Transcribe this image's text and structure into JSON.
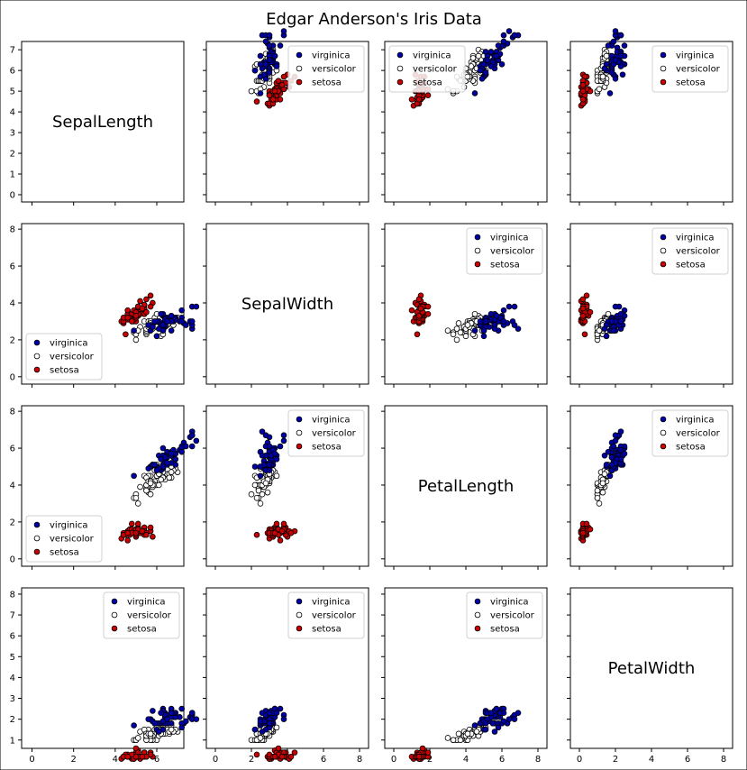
{
  "figure": {
    "title": "Edgar Anderson's Iris Data"
  },
  "chart_data": {
    "type": "scatter",
    "title": "Edgar Anderson's Iris Data",
    "variables": [
      "SepalLength",
      "SepalWidth",
      "PetalLength",
      "PetalWidth"
    ],
    "legend_order": [
      "virginica",
      "versicolor",
      "setosa"
    ],
    "colors": {
      "virginica": "#0000aa",
      "versicolor": "#ffffff",
      "setosa": "#cc0000",
      "edge": "#000000"
    },
    "x_ticks": [
      0,
      2,
      4,
      6,
      8
    ],
    "x_ticks_col0": [
      0,
      2,
      4,
      6
    ],
    "row_y_ticks": [
      [
        0,
        1,
        2,
        3,
        4,
        5,
        6,
        7
      ],
      [
        0,
        2,
        4,
        6,
        8
      ],
      [
        0,
        2,
        4,
        6,
        8
      ],
      [
        1,
        2,
        3,
        4,
        5,
        6,
        7,
        8
      ]
    ],
    "x_limits": [
      [
        -0.5,
        7.3
      ],
      [
        -0.5,
        8.5
      ],
      [
        -0.5,
        8.5
      ],
      [
        -0.5,
        8.5
      ]
    ],
    "row_y_limits": [
      [
        -0.35,
        7.4
      ],
      [
        -0.4,
        8.3
      ],
      [
        -0.4,
        8.3
      ],
      [
        0.6,
        8.3
      ]
    ],
    "legend_positions": [
      [
        "",
        "upper right",
        "upper left",
        "upper right"
      ],
      [
        "lower left",
        "",
        "upper right",
        "upper right"
      ],
      [
        "lower left",
        "upper right",
        "",
        "upper right"
      ],
      [
        "upper right",
        "upper right",
        "upper right",
        ""
      ]
    ],
    "species_data": {
      "setosa": {
        "SepalLength": [
          5.1,
          4.9,
          4.7,
          4.6,
          5.0,
          5.4,
          4.6,
          5.0,
          4.4,
          4.9,
          5.4,
          4.8,
          4.8,
          4.3,
          5.8,
          5.7,
          5.4,
          5.1,
          5.7,
          5.1,
          5.4,
          5.1,
          4.6,
          5.1,
          4.8,
          5.0,
          5.0,
          5.2,
          5.2,
          4.7,
          4.8,
          5.4,
          5.2,
          5.5,
          4.9,
          5.0,
          5.5,
          4.9,
          4.4,
          5.1,
          5.0,
          4.5,
          4.4,
          5.0,
          5.1,
          4.8,
          5.1,
          4.6,
          5.3,
          5.0
        ],
        "SepalWidth": [
          3.5,
          3.0,
          3.2,
          3.1,
          3.6,
          3.9,
          3.4,
          3.4,
          2.9,
          3.1,
          3.7,
          3.4,
          3.0,
          3.0,
          4.0,
          4.4,
          3.9,
          3.5,
          3.8,
          3.8,
          3.4,
          3.7,
          3.6,
          3.3,
          3.4,
          3.0,
          3.4,
          3.5,
          3.4,
          3.2,
          3.1,
          3.4,
          4.1,
          4.2,
          3.1,
          3.2,
          3.5,
          3.6,
          3.0,
          3.4,
          3.5,
          2.3,
          3.2,
          3.5,
          3.8,
          3.0,
          3.8,
          3.2,
          3.7,
          3.3
        ],
        "PetalLength": [
          1.4,
          1.4,
          1.3,
          1.5,
          1.4,
          1.7,
          1.4,
          1.5,
          1.4,
          1.5,
          1.5,
          1.6,
          1.4,
          1.1,
          1.2,
          1.5,
          1.3,
          1.4,
          1.7,
          1.5,
          1.7,
          1.5,
          1.0,
          1.7,
          1.9,
          1.6,
          1.6,
          1.5,
          1.4,
          1.6,
          1.6,
          1.5,
          1.5,
          1.4,
          1.5,
          1.2,
          1.3,
          1.4,
          1.3,
          1.5,
          1.3,
          1.3,
          1.3,
          1.6,
          1.9,
          1.4,
          1.6,
          1.4,
          1.5,
          1.4
        ],
        "PetalWidth": [
          0.2,
          0.2,
          0.2,
          0.2,
          0.2,
          0.4,
          0.3,
          0.2,
          0.2,
          0.1,
          0.2,
          0.2,
          0.1,
          0.1,
          0.2,
          0.4,
          0.4,
          0.3,
          0.3,
          0.3,
          0.2,
          0.4,
          0.2,
          0.5,
          0.2,
          0.2,
          0.4,
          0.2,
          0.2,
          0.2,
          0.2,
          0.4,
          0.1,
          0.2,
          0.2,
          0.2,
          0.2,
          0.1,
          0.2,
          0.2,
          0.3,
          0.3,
          0.2,
          0.6,
          0.4,
          0.3,
          0.2,
          0.2,
          0.2,
          0.2
        ]
      },
      "versicolor": {
        "SepalLength": [
          7.0,
          6.4,
          6.9,
          5.5,
          6.5,
          5.7,
          6.3,
          4.9,
          6.6,
          5.2,
          5.0,
          5.9,
          6.0,
          6.1,
          5.6,
          6.7,
          5.6,
          5.8,
          6.2,
          5.6,
          5.9,
          6.1,
          6.3,
          6.1,
          6.4,
          6.6,
          6.8,
          6.7,
          6.0,
          5.7,
          5.5,
          5.5,
          5.8,
          6.0,
          5.4,
          6.0,
          6.7,
          6.3,
          5.6,
          5.5,
          5.5,
          6.1,
          5.8,
          5.0,
          5.6,
          5.7,
          5.7,
          6.2,
          5.1,
          5.7
        ],
        "SepalWidth": [
          3.2,
          3.2,
          3.1,
          2.3,
          2.8,
          2.8,
          3.3,
          2.4,
          2.9,
          2.7,
          2.0,
          3.0,
          2.2,
          2.9,
          2.9,
          3.1,
          3.0,
          2.7,
          2.2,
          2.5,
          3.2,
          2.8,
          2.5,
          2.8,
          2.9,
          3.0,
          2.8,
          3.0,
          2.9,
          2.6,
          2.4,
          2.4,
          2.7,
          2.7,
          3.0,
          3.4,
          3.1,
          2.3,
          3.0,
          2.5,
          2.6,
          3.0,
          2.6,
          2.3,
          2.7,
          3.0,
          2.9,
          2.9,
          2.5,
          2.8
        ],
        "PetalLength": [
          4.7,
          4.5,
          4.9,
          4.0,
          4.6,
          4.5,
          4.7,
          3.3,
          4.6,
          3.9,
          3.5,
          4.2,
          4.0,
          4.7,
          3.6,
          4.4,
          4.5,
          4.1,
          4.5,
          3.9,
          4.8,
          4.0,
          4.9,
          4.7,
          4.3,
          4.4,
          4.8,
          5.0,
          4.5,
          3.5,
          3.8,
          3.7,
          3.9,
          5.1,
          4.5,
          4.5,
          4.7,
          4.4,
          4.1,
          4.0,
          4.4,
          4.6,
          4.0,
          3.3,
          4.2,
          4.2,
          4.2,
          4.3,
          3.0,
          4.1
        ],
        "PetalWidth": [
          1.4,
          1.5,
          1.5,
          1.3,
          1.5,
          1.3,
          1.6,
          1.0,
          1.3,
          1.4,
          1.0,
          1.5,
          1.0,
          1.4,
          1.3,
          1.4,
          1.5,
          1.0,
          1.5,
          1.1,
          1.8,
          1.3,
          1.5,
          1.2,
          1.3,
          1.4,
          1.4,
          1.7,
          1.5,
          1.0,
          1.1,
          1.0,
          1.2,
          1.6,
          1.5,
          1.6,
          1.5,
          1.3,
          1.3,
          1.3,
          1.2,
          1.4,
          1.2,
          1.0,
          1.3,
          1.2,
          1.3,
          1.3,
          1.1,
          1.3
        ]
      },
      "virginica": {
        "SepalLength": [
          6.3,
          5.8,
          7.1,
          6.3,
          6.5,
          7.6,
          4.9,
          7.3,
          6.7,
          7.2,
          6.5,
          6.4,
          6.8,
          5.7,
          5.8,
          6.4,
          6.5,
          7.7,
          7.7,
          6.0,
          6.9,
          5.6,
          7.7,
          6.3,
          6.7,
          7.2,
          6.2,
          6.1,
          6.4,
          7.2,
          7.4,
          7.9,
          6.4,
          6.3,
          6.1,
          7.7,
          6.3,
          6.4,
          6.0,
          6.9,
          6.7,
          6.9,
          5.8,
          6.8,
          6.7,
          6.7,
          6.3,
          6.5,
          6.2,
          5.9
        ],
        "SepalWidth": [
          3.3,
          2.7,
          3.0,
          2.9,
          3.0,
          3.0,
          2.5,
          2.9,
          2.5,
          3.6,
          3.2,
          2.7,
          3.0,
          2.5,
          2.8,
          3.2,
          3.0,
          3.8,
          2.6,
          2.2,
          3.2,
          2.8,
          2.8,
          2.7,
          3.3,
          3.2,
          2.8,
          3.0,
          2.8,
          3.0,
          2.8,
          3.8,
          2.8,
          2.8,
          2.6,
          3.0,
          3.4,
          3.1,
          3.0,
          3.1,
          3.1,
          3.1,
          2.7,
          3.2,
          3.3,
          3.0,
          2.5,
          3.0,
          3.4,
          3.0
        ],
        "PetalLength": [
          6.0,
          5.1,
          5.9,
          5.6,
          5.8,
          6.6,
          4.5,
          6.3,
          5.8,
          6.1,
          5.1,
          5.3,
          5.5,
          5.0,
          5.1,
          5.3,
          5.5,
          6.7,
          6.9,
          5.0,
          5.7,
          4.9,
          6.7,
          4.9,
          5.7,
          6.0,
          4.8,
          4.9,
          5.6,
          5.8,
          6.1,
          6.4,
          5.6,
          5.1,
          5.6,
          6.1,
          5.6,
          5.5,
          4.8,
          5.4,
          5.6,
          5.1,
          5.1,
          5.9,
          5.7,
          5.2,
          5.0,
          5.2,
          5.4,
          5.1
        ],
        "PetalWidth": [
          2.5,
          1.9,
          2.1,
          1.8,
          2.2,
          2.1,
          1.7,
          1.8,
          1.8,
          2.5,
          2.0,
          1.9,
          2.1,
          2.0,
          2.4,
          2.3,
          1.8,
          2.2,
          2.3,
          1.5,
          2.3,
          2.0,
          2.0,
          1.8,
          2.1,
          1.8,
          1.8,
          1.8,
          2.1,
          1.6,
          1.9,
          2.0,
          2.2,
          1.5,
          1.4,
          2.3,
          2.4,
          1.8,
          1.8,
          2.1,
          2.4,
          2.3,
          1.9,
          2.3,
          2.5,
          2.3,
          1.9,
          2.0,
          2.3,
          1.8
        ]
      }
    }
  }
}
